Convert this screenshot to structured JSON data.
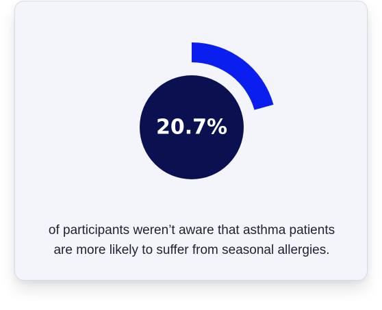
{
  "stat": {
    "value_label": "20.7%",
    "caption_line1": "of participants weren’t aware that asthma patients",
    "caption_line2": "are more likely to suffer from seasonal allergies."
  },
  "chart_data": {
    "type": "pie",
    "values": [
      20.7
    ],
    "unit": "%",
    "colors": {
      "arc": "#0a1ef0",
      "center": "#0b1150",
      "card": "#f4f5fb",
      "text": "#1f2033"
    }
  }
}
